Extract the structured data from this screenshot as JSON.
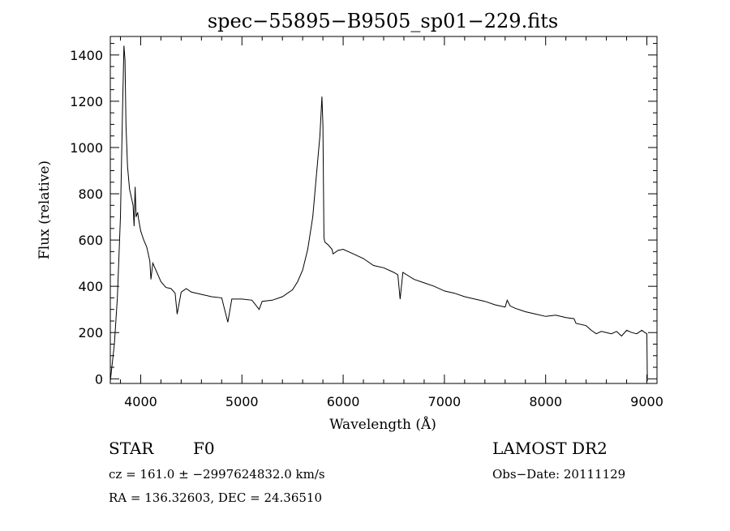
{
  "chart_data": {
    "type": "line",
    "title": "spec−55895−B9505_sp01−229.fits",
    "xlabel": "Wavelength (Å)",
    "ylabel": "Flux (relative)",
    "xlim": [
      3700,
      9100
    ],
    "ylim": [
      -20,
      1480
    ],
    "x_ticks": [
      4000,
      5000,
      6000,
      7000,
      8000,
      9000
    ],
    "y_ticks": [
      0,
      200,
      400,
      600,
      800,
      1000,
      1200,
      1400
    ],
    "grid": false,
    "series": [
      {
        "x": [
          3700,
          3740,
          3770,
          3800,
          3820,
          3835,
          3845,
          3855,
          3870,
          3890,
          3910,
          3925,
          3935,
          3945,
          3955,
          3970,
          3980,
          4000,
          4030,
          4060,
          4090,
          4101,
          4120,
          4150,
          4200,
          4250,
          4300,
          4340,
          4360,
          4400,
          4450,
          4500,
          4600,
          4700,
          4800,
          4861,
          4900,
          5000,
          5100,
          5170,
          5200,
          5300,
          5400,
          5500,
          5550,
          5600,
          5650,
          5700,
          5740,
          5770,
          5790,
          5800,
          5810,
          5820,
          5850,
          5890,
          5900,
          5950,
          6000,
          6100,
          6200,
          6300,
          6400,
          6500,
          6540,
          6563,
          6590,
          6700,
          6800,
          6900,
          7000,
          7100,
          7200,
          7300,
          7400,
          7500,
          7600,
          7620,
          7650,
          7700,
          7800,
          7900,
          8000,
          8100,
          8200,
          8280,
          8300,
          8400,
          8450,
          8500,
          8550,
          8600,
          8650,
          8700,
          8750,
          8800,
          8850,
          8900,
          8950,
          8980,
          9000,
          9005
        ],
        "y": [
          -10,
          150,
          350,
          700,
          1150,
          1440,
          1380,
          1100,
          920,
          820,
          780,
          750,
          660,
          830,
          700,
          720,
          690,
          640,
          600,
          570,
          510,
          430,
          500,
          470,
          420,
          395,
          390,
          370,
          280,
          375,
          390,
          375,
          365,
          355,
          350,
          245,
          345,
          345,
          340,
          300,
          335,
          340,
          355,
          385,
          420,
          470,
          560,
          700,
          900,
          1050,
          1220,
          1100,
          610,
          590,
          580,
          560,
          540,
          555,
          560,
          540,
          520,
          490,
          480,
          460,
          450,
          345,
          460,
          430,
          415,
          400,
          380,
          370,
          355,
          345,
          335,
          320,
          310,
          340,
          315,
          305,
          290,
          280,
          270,
          275,
          265,
          260,
          240,
          230,
          210,
          195,
          205,
          200,
          195,
          205,
          185,
          210,
          200,
          195,
          210,
          200,
          195,
          -10
        ]
      }
    ]
  },
  "info": {
    "object_class": "STAR",
    "subclass": "F0",
    "survey": "LAMOST DR2",
    "redshift_line": "cz = 161.0 ± −2997624832.0 km/s",
    "obs_date_line": "Obs−Date: 20111129",
    "coords_line": "RA = 136.32603, DEC =  24.36510"
  }
}
